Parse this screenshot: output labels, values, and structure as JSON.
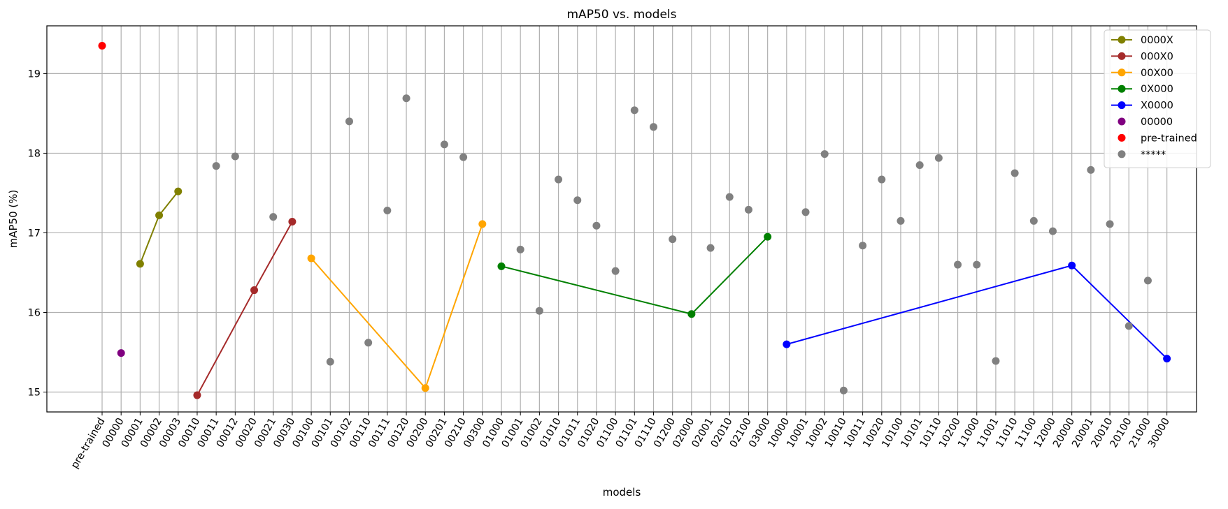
{
  "chart_data": {
    "type": "scatter",
    "title": "mAP50 vs. models",
    "xlabel": "models",
    "ylabel": "mAP50 (%)",
    "ylim": [
      14.75,
      19.6
    ],
    "yticks": [
      15,
      16,
      17,
      18,
      19
    ],
    "grid": true,
    "legend_position": "top-right",
    "categories": [
      "pre-trained",
      "00000",
      "00001",
      "00002",
      "00003",
      "00010",
      "00011",
      "00012",
      "00020",
      "00021",
      "00030",
      "00100",
      "00101",
      "00102",
      "00110",
      "00111",
      "00120",
      "00200",
      "00201",
      "00210",
      "00300",
      "01000",
      "01001",
      "01002",
      "01010",
      "01011",
      "01020",
      "01100",
      "01101",
      "01110",
      "01200",
      "02000",
      "02001",
      "02010",
      "02100",
      "03000",
      "10000",
      "10001",
      "10002",
      "10010",
      "10011",
      "10020",
      "10100",
      "10101",
      "10110",
      "10200",
      "11000",
      "11001",
      "11010",
      "11100",
      "12000",
      "20000",
      "20001",
      "20010",
      "20100",
      "21000",
      "30000"
    ],
    "series": [
      {
        "name": "0000X",
        "color": "#808000",
        "style": "line",
        "x": [
          "00001",
          "00002",
          "00003"
        ],
        "values": [
          16.61,
          17.22,
          17.52
        ]
      },
      {
        "name": "000X0",
        "color": "#a52a2a",
        "style": "line",
        "x": [
          "00010",
          "00020",
          "00030"
        ],
        "values": [
          14.96,
          16.28,
          17.14
        ]
      },
      {
        "name": "00X00",
        "color": "#ffa500",
        "style": "line",
        "x": [
          "00100",
          "00200",
          "00300"
        ],
        "values": [
          16.68,
          15.05,
          17.11
        ]
      },
      {
        "name": "0X000",
        "color": "#008000",
        "style": "line",
        "x": [
          "01000",
          "02000",
          "03000"
        ],
        "values": [
          16.58,
          15.98,
          16.95
        ]
      },
      {
        "name": "X0000",
        "color": "#0000ff",
        "style": "line",
        "x": [
          "10000",
          "20000",
          "30000"
        ],
        "values": [
          15.6,
          16.59,
          15.42
        ]
      },
      {
        "name": "00000",
        "color": "#800080",
        "style": "scatter",
        "x": [
          "00000"
        ],
        "values": [
          15.49
        ]
      },
      {
        "name": "pre-trained",
        "color": "#ff0000",
        "style": "scatter",
        "x": [
          "pre-trained"
        ],
        "values": [
          19.35
        ]
      },
      {
        "name": "*****",
        "color": "#808080",
        "style": "scatter",
        "x": [
          "00011",
          "00012",
          "00021",
          "00101",
          "00102",
          "00110",
          "00111",
          "00120",
          "00201",
          "00210",
          "01001",
          "01002",
          "01010",
          "01011",
          "01020",
          "01100",
          "01101",
          "01110",
          "01200",
          "02001",
          "02010",
          "02100",
          "10001",
          "10002",
          "10010",
          "10011",
          "10020",
          "10100",
          "10101",
          "10110",
          "10200",
          "11000",
          "11001",
          "11010",
          "11100",
          "12000",
          "20001",
          "20010",
          "20100",
          "21000"
        ],
        "values": [
          17.84,
          17.96,
          17.2,
          15.38,
          18.4,
          15.62,
          17.28,
          18.69,
          18.11,
          17.95,
          16.79,
          16.02,
          17.67,
          17.41,
          17.09,
          16.52,
          18.54,
          18.33,
          16.92,
          16.81,
          17.45,
          17.29,
          17.26,
          17.99,
          15.02,
          16.84,
          17.67,
          17.15,
          17.85,
          17.94,
          16.6,
          16.6,
          15.39,
          17.75,
          17.15,
          17.02,
          17.79,
          17.11,
          15.83,
          16.4
        ]
      }
    ]
  }
}
